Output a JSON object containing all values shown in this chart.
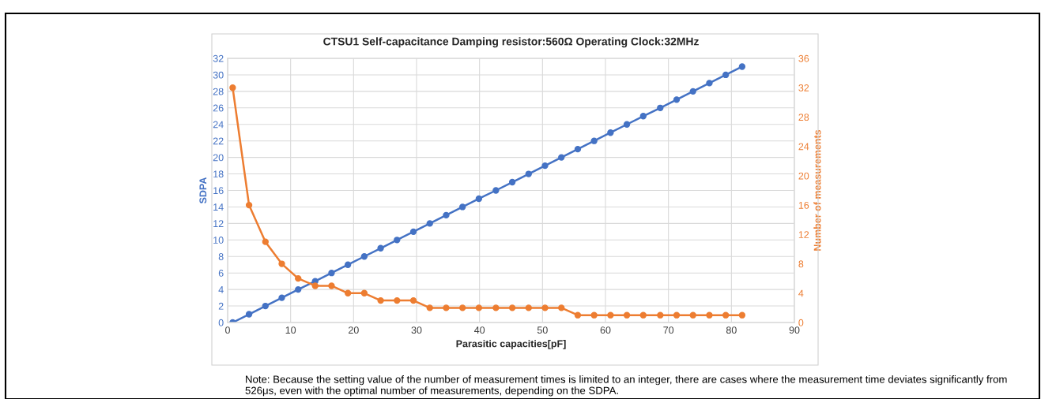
{
  "chart_data": {
    "type": "line",
    "title": "CTSU1 Self-capacitance Damping resistor:560Ω Operating Clock:32MHz",
    "xlabel": "Parasitic capacities[pF]",
    "ylabel": "SDPA",
    "y2label": "Number of measurements",
    "x": [
      0.8,
      3.4,
      6.0,
      8.6,
      11.2,
      13.9,
      16.5,
      19.1,
      21.7,
      24.3,
      26.9,
      29.5,
      32.1,
      34.7,
      37.3,
      39.9,
      42.6,
      45.2,
      47.8,
      50.4,
      53.0,
      55.6,
      58.2,
      60.8,
      63.4,
      66.0,
      68.7,
      71.3,
      73.9,
      76.5,
      79.1,
      81.7
    ],
    "series": [
      {
        "color": "#4472c4",
        "values": [
          0,
          1,
          2,
          3,
          4,
          5,
          6,
          7,
          8,
          9,
          10,
          11,
          12,
          13,
          14,
          15,
          16,
          17,
          18,
          19,
          20,
          21,
          22,
          23,
          24,
          25,
          26,
          27,
          28,
          29,
          30,
          31
        ]
      },
      {
        "color": "#ed7d31",
        "axis": "y2",
        "values": [
          32,
          16,
          11,
          8,
          6,
          5,
          5,
          4,
          4,
          3,
          3,
          3,
          2,
          2,
          2,
          2,
          2,
          2,
          2,
          2,
          2,
          1,
          1,
          1,
          1,
          1,
          1,
          1,
          1,
          1,
          1,
          1
        ]
      }
    ],
    "xlim": [
      0,
      90
    ],
    "xticks": [
      0,
      10,
      20,
      30,
      40,
      50,
      60,
      70,
      80,
      90
    ],
    "ylim": [
      0,
      32
    ],
    "yticks": [
      0,
      2,
      4,
      6,
      8,
      10,
      12,
      14,
      16,
      18,
      20,
      22,
      24,
      26,
      28,
      30,
      32
    ],
    "y2lim": [
      0,
      36
    ],
    "y2ticks": [
      0,
      4,
      8,
      12,
      16,
      20,
      24,
      28,
      32,
      36
    ],
    "grid": true,
    "marker": "circle",
    "line_style": "solid",
    "legend": false,
    "annotations": [
      "Note: Because the setting value of the number of measurement times is limited to an integer, there are cases where the measurement time deviates significantly from 526μs, even with the optimal number of measurements, depending on the SDPA."
    ]
  }
}
